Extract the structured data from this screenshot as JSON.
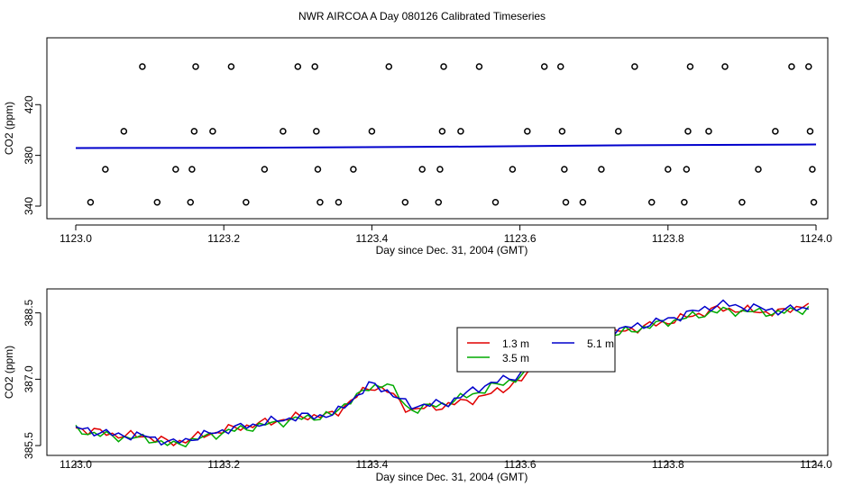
{
  "title": "NWR AIRCOA A  Day 080126  Calibrated Timeseries",
  "chart_data": [
    {
      "type": "scatter",
      "xlabel": "Day since Dec. 31, 2004 (GMT)",
      "ylabel": "CO2 (ppm)",
      "xlim": [
        1123.0,
        1124.0
      ],
      "ylim": [
        340,
        450
      ],
      "xticks": [
        1123.0,
        1123.2,
        1123.4,
        1123.6,
        1123.8,
        1124.0
      ],
      "xtick_labels": [
        "1123.0",
        "1123.2",
        "1123.4",
        "1123.6",
        "1123.8",
        "1124.0"
      ],
      "yticks": [
        340,
        380,
        420
      ],
      "ytick_labels": [
        "340",
        "380",
        "420"
      ],
      "grid": false,
      "points_x": [
        1123.02,
        1123.04,
        1123.065,
        1123.09,
        1123.11,
        1123.135,
        1123.155,
        1123.157,
        1123.16,
        1123.162,
        1123.185,
        1123.21,
        1123.23,
        1123.255,
        1123.28,
        1123.3,
        1123.323,
        1123.325,
        1123.327,
        1123.33,
        1123.355,
        1123.375,
        1123.4,
        1123.423,
        1123.445,
        1123.468,
        1123.49,
        1123.492,
        1123.495,
        1123.497,
        1123.52,
        1123.545,
        1123.567,
        1123.59,
        1123.61,
        1123.633,
        1123.655,
        1123.657,
        1123.66,
        1123.662,
        1123.685,
        1123.71,
        1123.733,
        1123.755,
        1123.778,
        1123.8,
        1123.822,
        1123.825,
        1123.827,
        1123.83,
        1123.855,
        1123.877,
        1123.9,
        1123.922,
        1123.945,
        1123.967,
        1123.99,
        1123.992,
        1123.995,
        1123.997
      ],
      "points_y": [
        343,
        369,
        399,
        450,
        343,
        369,
        343,
        369,
        399,
        450,
        399,
        450,
        343,
        369,
        399,
        450,
        450,
        399,
        369,
        343,
        343,
        369,
        399,
        450,
        343,
        369,
        343,
        369,
        399,
        450,
        399,
        450,
        343,
        369,
        399,
        450,
        450,
        399,
        369,
        343,
        343,
        369,
        399,
        450,
        343,
        369,
        343,
        369,
        399,
        450,
        399,
        450,
        343,
        369,
        399,
        450,
        450,
        399,
        369,
        343
      ],
      "series": [
        {
          "x": [
            1123.0,
            1123.25,
            1123.5,
            1123.75,
            1124.0
          ],
          "values": [
            385.8,
            386.0,
            386.8,
            388.0,
            388.6
          ],
          "color": "#0000cc"
        }
      ]
    },
    {
      "type": "line",
      "xlabel": "Day since Dec. 31, 2004 (GMT)",
      "ylabel": "CO2 (ppm)",
      "xlim": [
        1123.0,
        1124.0
      ],
      "ylim": [
        385.4,
        388.9
      ],
      "xticks": [
        1123.0,
        1123.2,
        1123.4,
        1123.6,
        1123.8,
        1124.0
      ],
      "xtick_labels": [
        "1123.0",
        "1123.2",
        "1123.4",
        "1123.6",
        "1123.8",
        "1124.0"
      ],
      "yticks": [
        385.5,
        387.0,
        388.5
      ],
      "ytick_labels": [
        "385.5",
        "387.0",
        "388.5"
      ],
      "grid": false,
      "legend_position": "center",
      "x": [
        1123.0,
        1123.05,
        1123.1,
        1123.13,
        1123.2,
        1123.25,
        1123.3,
        1123.35,
        1123.37,
        1123.4,
        1123.42,
        1123.45,
        1123.5,
        1123.55,
        1123.6,
        1123.65,
        1123.7,
        1123.8,
        1123.87,
        1123.95,
        1123.99
      ],
      "series": [
        {
          "name": "1.3 m",
          "color": "#e00000",
          "values": [
            385.9,
            385.75,
            385.7,
            385.55,
            385.85,
            386.0,
            386.15,
            386.2,
            386.5,
            386.85,
            386.75,
            386.3,
            386.4,
            386.6,
            386.95,
            387.7,
            387.95,
            388.3,
            388.6,
            388.5,
            388.72
          ]
        },
        {
          "name": "3.5 m",
          "color": "#00aa00",
          "values": [
            385.85,
            385.7,
            385.65,
            385.5,
            385.8,
            385.95,
            386.1,
            386.2,
            386.55,
            386.8,
            386.95,
            386.3,
            386.45,
            386.75,
            387.05,
            387.6,
            387.9,
            388.3,
            388.55,
            388.5,
            388.6
          ]
        },
        {
          "name": "5.1 m",
          "color": "#0000cc",
          "values": [
            385.9,
            385.75,
            385.7,
            385.55,
            385.85,
            386.0,
            386.15,
            386.2,
            386.5,
            386.9,
            386.75,
            386.4,
            386.45,
            386.85,
            387.1,
            387.75,
            388.0,
            388.35,
            388.7,
            388.55,
            388.62
          ]
        }
      ]
    }
  ]
}
